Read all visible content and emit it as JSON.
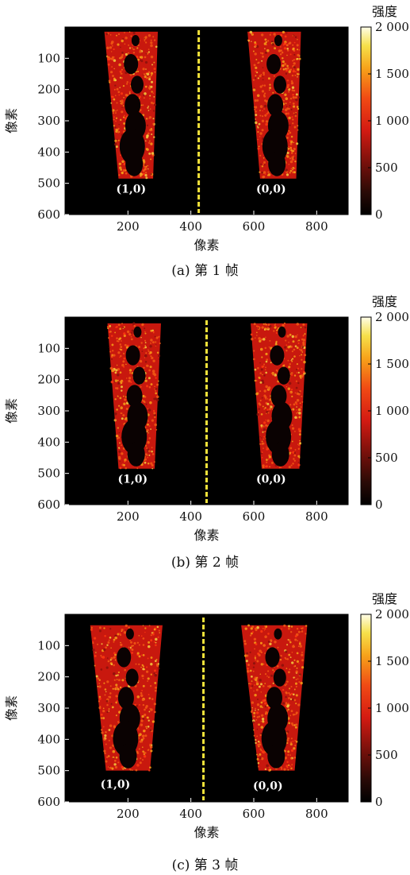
{
  "chart_data": [
    {
      "type": "heatmap",
      "caption": "(a) 第 1 帧",
      "xlabel": "像素",
      "ylabel": "像素",
      "xlim": [
        0,
        900
      ],
      "ylim": [
        600,
        0
      ],
      "x_ticks": [
        200,
        400,
        600,
        800
      ],
      "y_ticks": [
        100,
        200,
        300,
        400,
        500,
        600
      ],
      "colorbar": {
        "title": "强度",
        "range": [
          0,
          2000
        ],
        "ticks": [
          0,
          500,
          1000,
          1500,
          2000
        ],
        "tick_labels": [
          "0",
          "500",
          "1 000",
          "1 500",
          "2 000"
        ]
      },
      "divider_x": 425,
      "spots": [
        {
          "label": "(1,0)",
          "label_x": 210,
          "label_y": 520,
          "x_top": [
            125,
            295
          ],
          "x_bottom": [
            170,
            280
          ],
          "y_range": [
            15,
            485
          ]
        },
        {
          "label": "(0,0)",
          "label_x": 655,
          "label_y": 520,
          "x_top": [
            580,
            750
          ],
          "x_bottom": [
            620,
            735
          ],
          "y_range": [
            15,
            485
          ]
        }
      ]
    },
    {
      "type": "heatmap",
      "caption": "(b) 第 2 帧",
      "xlabel": "像素",
      "ylabel": "像素",
      "xlim": [
        0,
        900
      ],
      "ylim": [
        600,
        0
      ],
      "x_ticks": [
        200,
        400,
        600,
        800
      ],
      "y_ticks": [
        100,
        200,
        300,
        400,
        500,
        600
      ],
      "colorbar": {
        "title": "强度",
        "range": [
          0,
          2000
        ],
        "ticks": [
          0,
          500,
          1000,
          1500,
          2000
        ],
        "tick_labels": [
          "0",
          "500",
          "1 000",
          "1 500",
          "2 000"
        ]
      },
      "divider_x": 450,
      "spots": [
        {
          "label": "(1,0)",
          "label_x": 215,
          "label_y": 520,
          "x_top": [
            135,
            305
          ],
          "x_bottom": [
            170,
            285
          ],
          "y_range": [
            20,
            485
          ]
        },
        {
          "label": "(0,0)",
          "label_x": 655,
          "label_y": 520,
          "x_top": [
            590,
            770
          ],
          "x_bottom": [
            625,
            745
          ],
          "y_range": [
            20,
            485
          ]
        }
      ]
    },
    {
      "type": "heatmap",
      "caption": "(c) 第 3 帧",
      "xlabel": "像素",
      "ylabel": "像素",
      "xlim": [
        0,
        900
      ],
      "ylim": [
        600,
        0
      ],
      "x_ticks": [
        200,
        400,
        600,
        800
      ],
      "y_ticks": [
        100,
        200,
        300,
        400,
        500,
        600
      ],
      "colorbar": {
        "title": "强度",
        "range": [
          0,
          2000
        ],
        "ticks": [
          0,
          500,
          1000,
          1500,
          2000
        ],
        "tick_labels": [
          "0",
          "500",
          "1 000",
          "1 500",
          "2 000"
        ]
      },
      "divider_x": 440,
      "spots": [
        {
          "label": "(1,0)",
          "label_x": 160,
          "label_y": 545,
          "x_top": [
            80,
            310
          ],
          "x_bottom": [
            130,
            270
          ],
          "y_range": [
            35,
            500
          ]
        },
        {
          "label": "(0,0)",
          "label_x": 645,
          "label_y": 550,
          "x_top": [
            560,
            770
          ],
          "x_bottom": [
            615,
            730
          ],
          "y_range": [
            35,
            500
          ]
        }
      ]
    }
  ]
}
